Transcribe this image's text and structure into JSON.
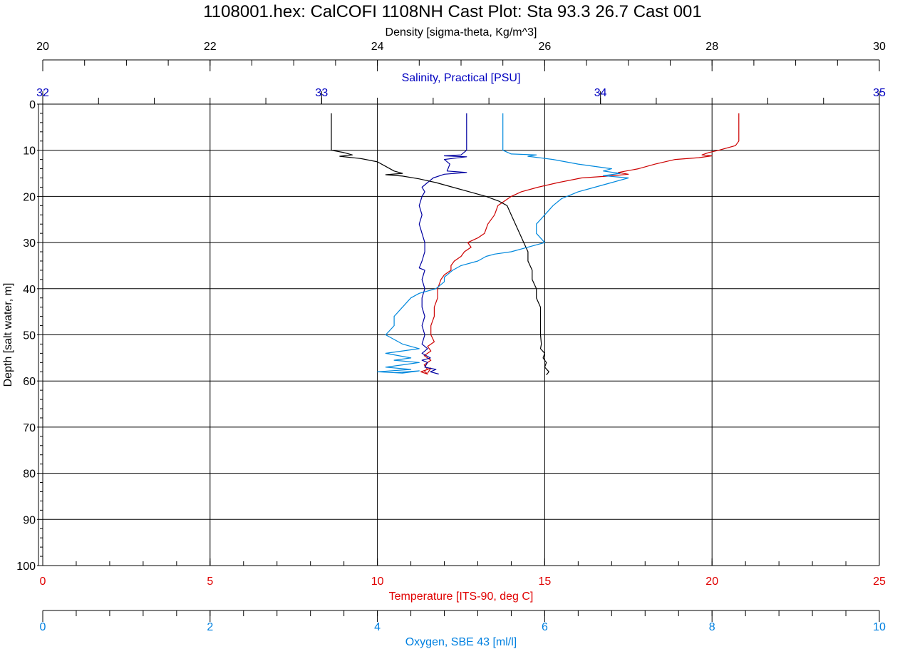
{
  "chart_data": {
    "type": "line",
    "title": "1108001.hex: CalCOFI 1108NH Cast Plot: Sta 93.3 26.7 Cast 001",
    "grid": true,
    "y_axis": {
      "label": "Depth [salt water, m]",
      "range": [
        0,
        100
      ],
      "inverted": true,
      "ticks": [
        "0",
        "10",
        "20",
        "30",
        "40",
        "50",
        "60",
        "70",
        "80",
        "90",
        "100"
      ],
      "color": "#000000"
    },
    "x_axes": [
      {
        "id": "density",
        "label": "Density [sigma-theta, Kg/m^3]",
        "position": "top",
        "range": [
          20,
          30
        ],
        "ticks": [
          "20",
          "22",
          "24",
          "26",
          "28",
          "30"
        ],
        "color": "#000000"
      },
      {
        "id": "salinity",
        "label": "Salinity, Practical [PSU]",
        "position": "top",
        "range": [
          32,
          35
        ],
        "ticks": [
          "32",
          "33",
          "34",
          "35"
        ],
        "color": "#0000c0"
      },
      {
        "id": "temperature",
        "label": "Temperature [ITS-90, deg C]",
        "position": "bottom",
        "range": [
          0,
          25
        ],
        "ticks": [
          "0",
          "5",
          "10",
          "15",
          "20",
          "25"
        ],
        "color": "#e00000"
      },
      {
        "id": "oxygen",
        "label": "Oxygen, SBE 43 [ml/l]",
        "position": "bottom",
        "range": [
          0,
          10
        ],
        "ticks": [
          "0",
          "2",
          "4",
          "6",
          "8",
          "10"
        ],
        "color": "#0080e0"
      }
    ],
    "series": [
      {
        "axis": "temperature",
        "color": "#cc0000",
        "points": [
          [
            20.8,
            2
          ],
          [
            20.8,
            5
          ],
          [
            20.8,
            8
          ],
          [
            20.7,
            9
          ],
          [
            20.2,
            10
          ],
          [
            19.9,
            10.5
          ],
          [
            19.7,
            11
          ],
          [
            20.0,
            11.2
          ],
          [
            19.6,
            11.6
          ],
          [
            18.9,
            12
          ],
          [
            18.3,
            13
          ],
          [
            17.8,
            14
          ],
          [
            17.2,
            14.8
          ],
          [
            17.5,
            15.2
          ],
          [
            16.9,
            15.6
          ],
          [
            16.1,
            16
          ],
          [
            15.4,
            17
          ],
          [
            14.8,
            18
          ],
          [
            14.3,
            19
          ],
          [
            14.0,
            20
          ],
          [
            13.8,
            21
          ],
          [
            13.6,
            22
          ],
          [
            13.5,
            24
          ],
          [
            13.3,
            26
          ],
          [
            13.2,
            28
          ],
          [
            13.0,
            29
          ],
          [
            12.7,
            30
          ],
          [
            12.8,
            31
          ],
          [
            12.6,
            32
          ],
          [
            12.5,
            33
          ],
          [
            12.3,
            34
          ],
          [
            12.2,
            35
          ],
          [
            12.2,
            36
          ],
          [
            12.0,
            37
          ],
          [
            11.9,
            38
          ],
          [
            11.8,
            40
          ],
          [
            11.8,
            42
          ],
          [
            11.7,
            44
          ],
          [
            11.7,
            46
          ],
          [
            11.6,
            48
          ],
          [
            11.6,
            50
          ],
          [
            11.7,
            51.5
          ],
          [
            11.5,
            52.5
          ],
          [
            11.6,
            53.5
          ],
          [
            11.4,
            54.5
          ],
          [
            11.6,
            55.5
          ],
          [
            11.4,
            56.5
          ],
          [
            11.5,
            57.5
          ],
          [
            11.3,
            58
          ],
          [
            11.5,
            58.5
          ],
          [
            11.4,
            57.8
          ],
          [
            11.6,
            57.2
          ],
          [
            11.5,
            58.3
          ]
        ]
      },
      {
        "axis": "salinity",
        "color": "#0000a0",
        "points": [
          [
            33.52,
            2
          ],
          [
            33.52,
            5
          ],
          [
            33.52,
            8
          ],
          [
            33.52,
            10
          ],
          [
            33.5,
            11
          ],
          [
            33.44,
            11.2
          ],
          [
            33.52,
            11.4
          ],
          [
            33.44,
            12
          ],
          [
            33.46,
            13
          ],
          [
            33.45,
            14.5
          ],
          [
            33.52,
            14.8
          ],
          [
            33.44,
            15.2
          ],
          [
            33.4,
            16
          ],
          [
            33.38,
            17
          ],
          [
            33.36,
            18
          ],
          [
            33.37,
            19
          ],
          [
            33.36,
            20
          ],
          [
            33.35,
            22
          ],
          [
            33.36,
            24
          ],
          [
            33.35,
            26
          ],
          [
            33.36,
            28
          ],
          [
            33.37,
            30
          ],
          [
            33.37,
            32
          ],
          [
            33.36,
            34
          ],
          [
            33.35,
            35.5
          ],
          [
            33.37,
            36
          ],
          [
            33.36,
            38
          ],
          [
            33.37,
            40
          ],
          [
            33.36,
            42
          ],
          [
            33.36,
            44
          ],
          [
            33.37,
            46
          ],
          [
            33.36,
            48
          ],
          [
            33.37,
            50
          ],
          [
            33.36,
            52
          ],
          [
            33.38,
            53
          ],
          [
            33.36,
            54
          ],
          [
            33.39,
            55
          ],
          [
            33.36,
            55.5
          ],
          [
            33.38,
            56
          ],
          [
            33.37,
            57
          ],
          [
            33.41,
            57.5
          ],
          [
            33.39,
            58
          ],
          [
            33.42,
            58.5
          ]
        ]
      },
      {
        "axis": "density",
        "color": "#000000",
        "points": [
          [
            23.45,
            2
          ],
          [
            23.45,
            5
          ],
          [
            23.45,
            8
          ],
          [
            23.45,
            10
          ],
          [
            23.6,
            10.5
          ],
          [
            23.7,
            11
          ],
          [
            23.55,
            11.3
          ],
          [
            23.8,
            11.8
          ],
          [
            24.0,
            12.5
          ],
          [
            24.1,
            13.5
          ],
          [
            24.2,
            14.5
          ],
          [
            24.3,
            15
          ],
          [
            24.1,
            15.3
          ],
          [
            24.3,
            15.6
          ],
          [
            24.5,
            16.2
          ],
          [
            24.7,
            17
          ],
          [
            24.9,
            18
          ],
          [
            25.1,
            19
          ],
          [
            25.3,
            20
          ],
          [
            25.45,
            21
          ],
          [
            25.55,
            22
          ],
          [
            25.6,
            24
          ],
          [
            25.65,
            26
          ],
          [
            25.7,
            28
          ],
          [
            25.75,
            30
          ],
          [
            25.8,
            32
          ],
          [
            25.8,
            34
          ],
          [
            25.85,
            36
          ],
          [
            25.85,
            38
          ],
          [
            25.9,
            40
          ],
          [
            25.9,
            42
          ],
          [
            25.95,
            44
          ],
          [
            25.95,
            46
          ],
          [
            25.95,
            48
          ],
          [
            25.95,
            50
          ],
          [
            25.96,
            52
          ],
          [
            25.95,
            53
          ],
          [
            26.0,
            54
          ],
          [
            25.98,
            55
          ],
          [
            26.02,
            56
          ],
          [
            26.0,
            57
          ],
          [
            26.05,
            58
          ],
          [
            26.02,
            58.7
          ]
        ]
      },
      {
        "axis": "oxygen",
        "color": "#0088dd",
        "points": [
          [
            5.5,
            2
          ],
          [
            5.5,
            5
          ],
          [
            5.5,
            8
          ],
          [
            5.5,
            10
          ],
          [
            5.6,
            10.8
          ],
          [
            5.9,
            11
          ],
          [
            5.8,
            11.3
          ],
          [
            6.1,
            12
          ],
          [
            6.4,
            13
          ],
          [
            6.8,
            14
          ],
          [
            6.7,
            14.5
          ],
          [
            6.9,
            15
          ],
          [
            6.7,
            15.5
          ],
          [
            7.0,
            16
          ],
          [
            6.8,
            17
          ],
          [
            6.6,
            18
          ],
          [
            6.4,
            19
          ],
          [
            6.2,
            20.5
          ],
          [
            6.1,
            22
          ],
          [
            6.0,
            24
          ],
          [
            5.9,
            26
          ],
          [
            5.9,
            28
          ],
          [
            6.0,
            30
          ],
          [
            5.8,
            31
          ],
          [
            5.6,
            32
          ],
          [
            5.4,
            32.5
          ],
          [
            5.3,
            33
          ],
          [
            5.2,
            34
          ],
          [
            5.0,
            35
          ],
          [
            4.9,
            36
          ],
          [
            4.8,
            37.5
          ],
          [
            4.8,
            38.5
          ],
          [
            4.7,
            40
          ],
          [
            4.5,
            41
          ],
          [
            4.4,
            42
          ],
          [
            4.3,
            44
          ],
          [
            4.2,
            46
          ],
          [
            4.2,
            48
          ],
          [
            4.1,
            50
          ],
          [
            4.2,
            51
          ],
          [
            4.3,
            52
          ],
          [
            4.5,
            53
          ],
          [
            4.1,
            54
          ],
          [
            4.4,
            55
          ],
          [
            4.2,
            55.5
          ],
          [
            4.5,
            56
          ],
          [
            4.3,
            56.5
          ],
          [
            4.1,
            57
          ],
          [
            4.4,
            57.5
          ],
          [
            4.0,
            58
          ],
          [
            4.3,
            58.3
          ],
          [
            4.5,
            57.8
          ],
          [
            4.2,
            58.2
          ]
        ]
      }
    ]
  }
}
